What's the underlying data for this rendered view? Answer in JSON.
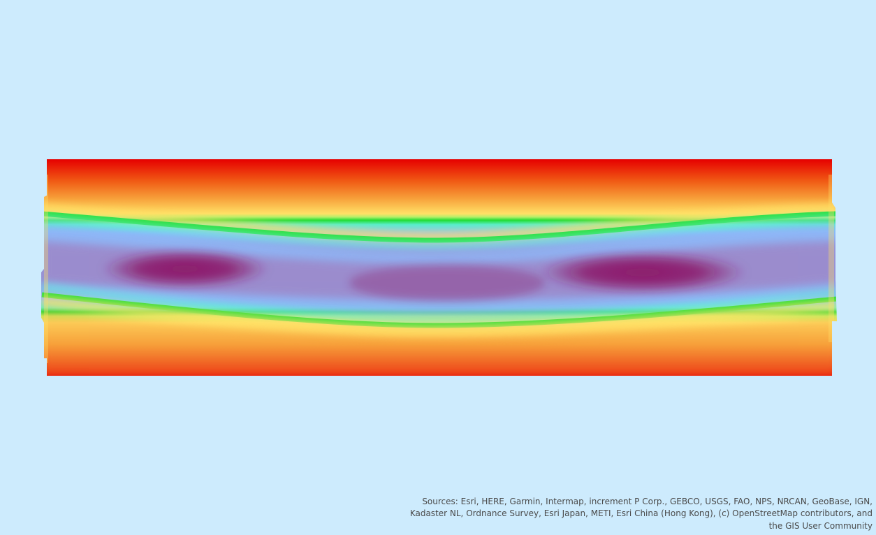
{
  "map": {
    "basemap_background": "#cdebfd",
    "raster_layer": {
      "color_ramp": [
        "#e60000",
        "#f7a03a",
        "#ffe066",
        "#22dd33",
        "#88bbff",
        "#8c1a6a"
      ]
    }
  },
  "attribution": {
    "text": "Sources: Esri, HERE, Garmin, Intermap, increment P Corp., GEBCO, USGS, FAO, NPS, NRCAN, GeoBase, IGN, Kadaster NL, Ordnance Survey, Esri Japan, METI, Esri China (Hong Kong), (c) OpenStreetMap contributors, and the GIS User Community"
  }
}
